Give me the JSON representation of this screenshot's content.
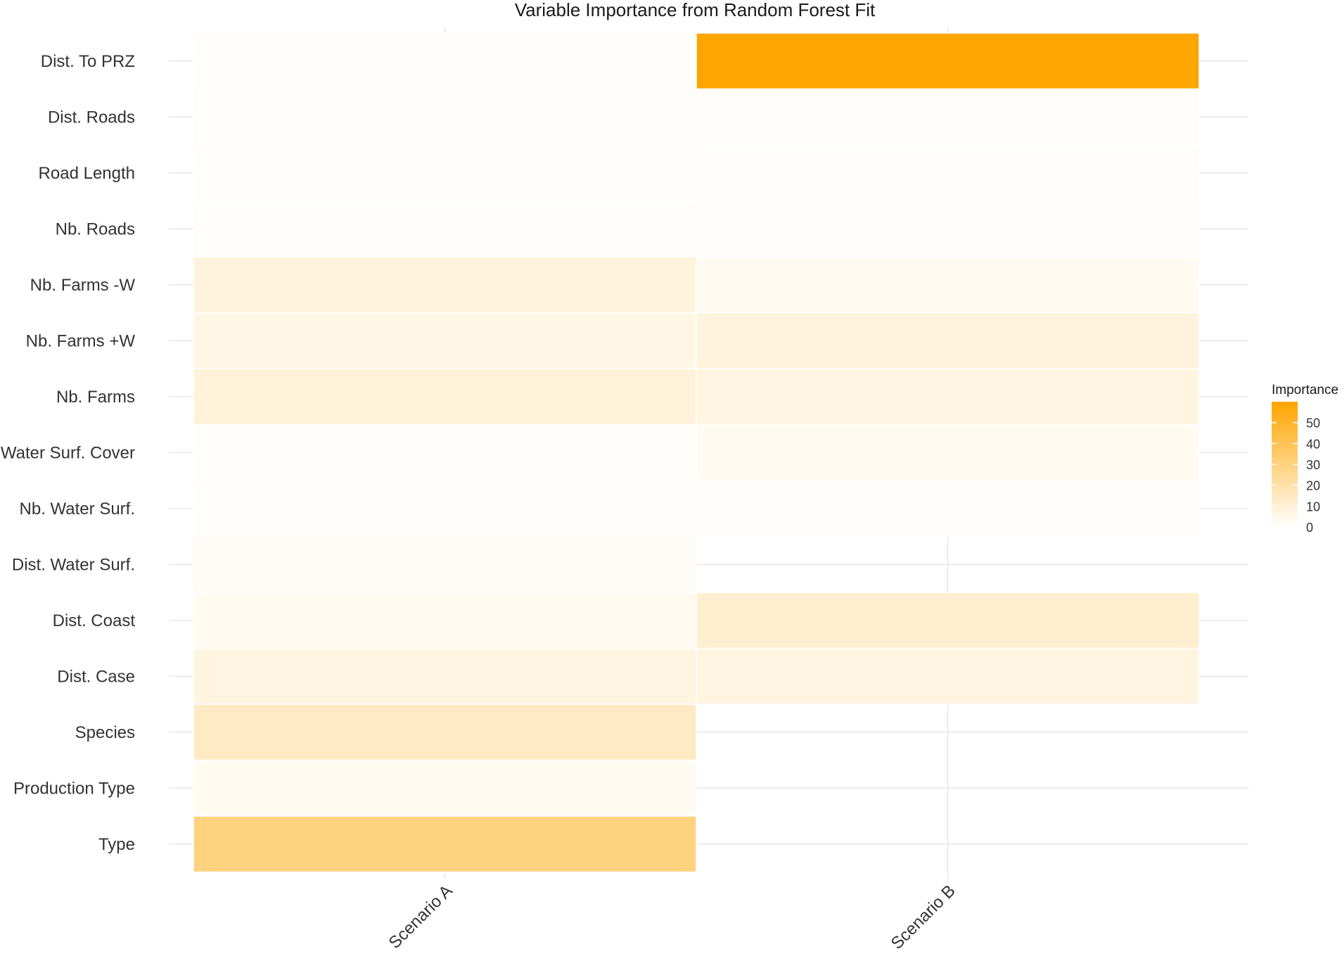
{
  "chart_data": {
    "type": "heatmap",
    "title": "Variable Importance from Random Forest Fit",
    "xlabel": "",
    "ylabel": "",
    "x_categories": [
      "Scenario A",
      "Scenario B"
    ],
    "y_categories": [
      "Dist. To PRZ",
      "Dist. Roads",
      "Road Length",
      "Nb. Roads",
      "Nb. Farms -W",
      "Nb. Farms +W",
      "Nb. Farms",
      "Water Surf. Cover",
      "Nb. Water Surf.",
      "Dist. Water Surf.",
      "Dist. Coast",
      "Dist. Case",
      "Species",
      "Production Type",
      "Type"
    ],
    "values": [
      [
        1,
        60
      ],
      [
        1.5,
        1.5
      ],
      [
        0.5,
        1.5
      ],
      [
        1.5,
        0.5
      ],
      [
        8,
        3
      ],
      [
        6,
        8
      ],
      [
        9,
        7
      ],
      [
        1,
        3
      ],
      [
        1,
        1
      ],
      [
        2,
        null
      ],
      [
        3,
        11
      ],
      [
        7,
        7
      ],
      [
        14,
        null
      ],
      [
        3,
        null
      ],
      [
        30,
        null
      ]
    ],
    "legend": {
      "title": "Importance",
      "ticks": [
        0,
        10,
        20,
        30,
        40,
        50
      ],
      "range": [
        0,
        60
      ],
      "position": "right"
    },
    "colors": {
      "low": "#ffffff",
      "high": "#ffa500",
      "grid": "#e3e3e3"
    },
    "grid": true
  }
}
